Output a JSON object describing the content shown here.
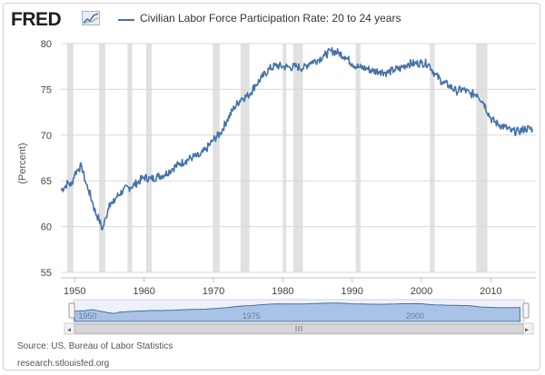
{
  "logo": {
    "text": "FRED",
    "mark_icon": "fred-graph-icon"
  },
  "legend": {
    "label": "Civilian Labor Force Participation Rate: 20 to 24 years"
  },
  "source": "Source: US. Bureau of Labor Statistics",
  "site": "research.stlouisfed.org",
  "navigator": {
    "labels": [
      "1950",
      "1975",
      "2000"
    ],
    "scroll_icon": "scrollbar-grip-icon"
  },
  "colors": {
    "line": "#4572a7",
    "recession": "#e1e1e1",
    "grid": "#d8d8d8",
    "nav_fill": "#a9c2e6",
    "nav_line": "#4572a7"
  },
  "chart_data": {
    "type": "line",
    "title": "",
    "xlabel": "",
    "ylabel": "(Percent)",
    "xlim": [
      1948,
      2016.5
    ],
    "ylim": [
      55,
      80
    ],
    "grid": true,
    "legend_position": "top-left",
    "xticks": [
      1950,
      1960,
      1970,
      1980,
      1990,
      2000,
      2010
    ],
    "yticks": [
      55,
      60,
      65,
      70,
      75,
      80
    ],
    "recessions": [
      [
        1948.9,
        1949.8
      ],
      [
        1953.5,
        1954.4
      ],
      [
        1957.6,
        1958.3
      ],
      [
        1960.3,
        1961.1
      ],
      [
        1969.9,
        1970.9
      ],
      [
        1973.9,
        1975.2
      ],
      [
        1980.0,
        1980.5
      ],
      [
        1981.5,
        1982.9
      ],
      [
        1990.5,
        1991.2
      ],
      [
        2001.2,
        2001.9
      ],
      [
        2007.9,
        2009.5
      ]
    ],
    "series": [
      {
        "name": "Civilian Labor Force Participation Rate: 20 to 24 years",
        "x": [
          1948,
          1948.5,
          1949,
          1949.5,
          1950,
          1950.5,
          1951,
          1951.5,
          1952,
          1952.5,
          1953,
          1953.5,
          1954,
          1954.5,
          1955,
          1955.5,
          1956,
          1957,
          1958,
          1959,
          1960,
          1961,
          1962,
          1963,
          1964,
          1965,
          1966,
          1967,
          1968,
          1969,
          1970,
          1971,
          1972,
          1973,
          1974,
          1975,
          1976,
          1977,
          1978,
          1979,
          1980,
          1981,
          1982,
          1983,
          1984,
          1985,
          1986,
          1987,
          1988,
          1989,
          1990,
          1991,
          1992,
          1993,
          1994,
          1995,
          1996,
          1997,
          1998,
          1999,
          2000,
          2001,
          2002,
          2003,
          2004,
          2005,
          2006,
          2007,
          2008,
          2009,
          2010,
          2011,
          2012,
          2013,
          2014,
          2015,
          2016
        ],
        "values": [
          64.0,
          64.3,
          64.8,
          64.5,
          65.8,
          66.3,
          66.6,
          65.0,
          64.0,
          62.8,
          61.5,
          60.8,
          59.7,
          61.0,
          62.6,
          62.5,
          63.2,
          64.0,
          64.3,
          64.8,
          65.4,
          65.2,
          65.5,
          65.7,
          66.3,
          66.8,
          67.2,
          67.6,
          67.7,
          68.5,
          69.5,
          70.2,
          71.7,
          73.0,
          74.0,
          74.3,
          75.4,
          76.3,
          77.2,
          77.6,
          77.5,
          77.4,
          77.5,
          77.3,
          78.0,
          78.2,
          78.7,
          79.2,
          79.0,
          78.6,
          77.8,
          77.4,
          77.3,
          77.0,
          77.0,
          76.8,
          77.1,
          77.3,
          77.8,
          77.8,
          77.9,
          77.8,
          76.6,
          75.8,
          75.4,
          74.8,
          75.0,
          74.5,
          74.5,
          73.5,
          71.8,
          71.2,
          70.9,
          70.4,
          70.4,
          70.7,
          70.7
        ]
      }
    ]
  }
}
